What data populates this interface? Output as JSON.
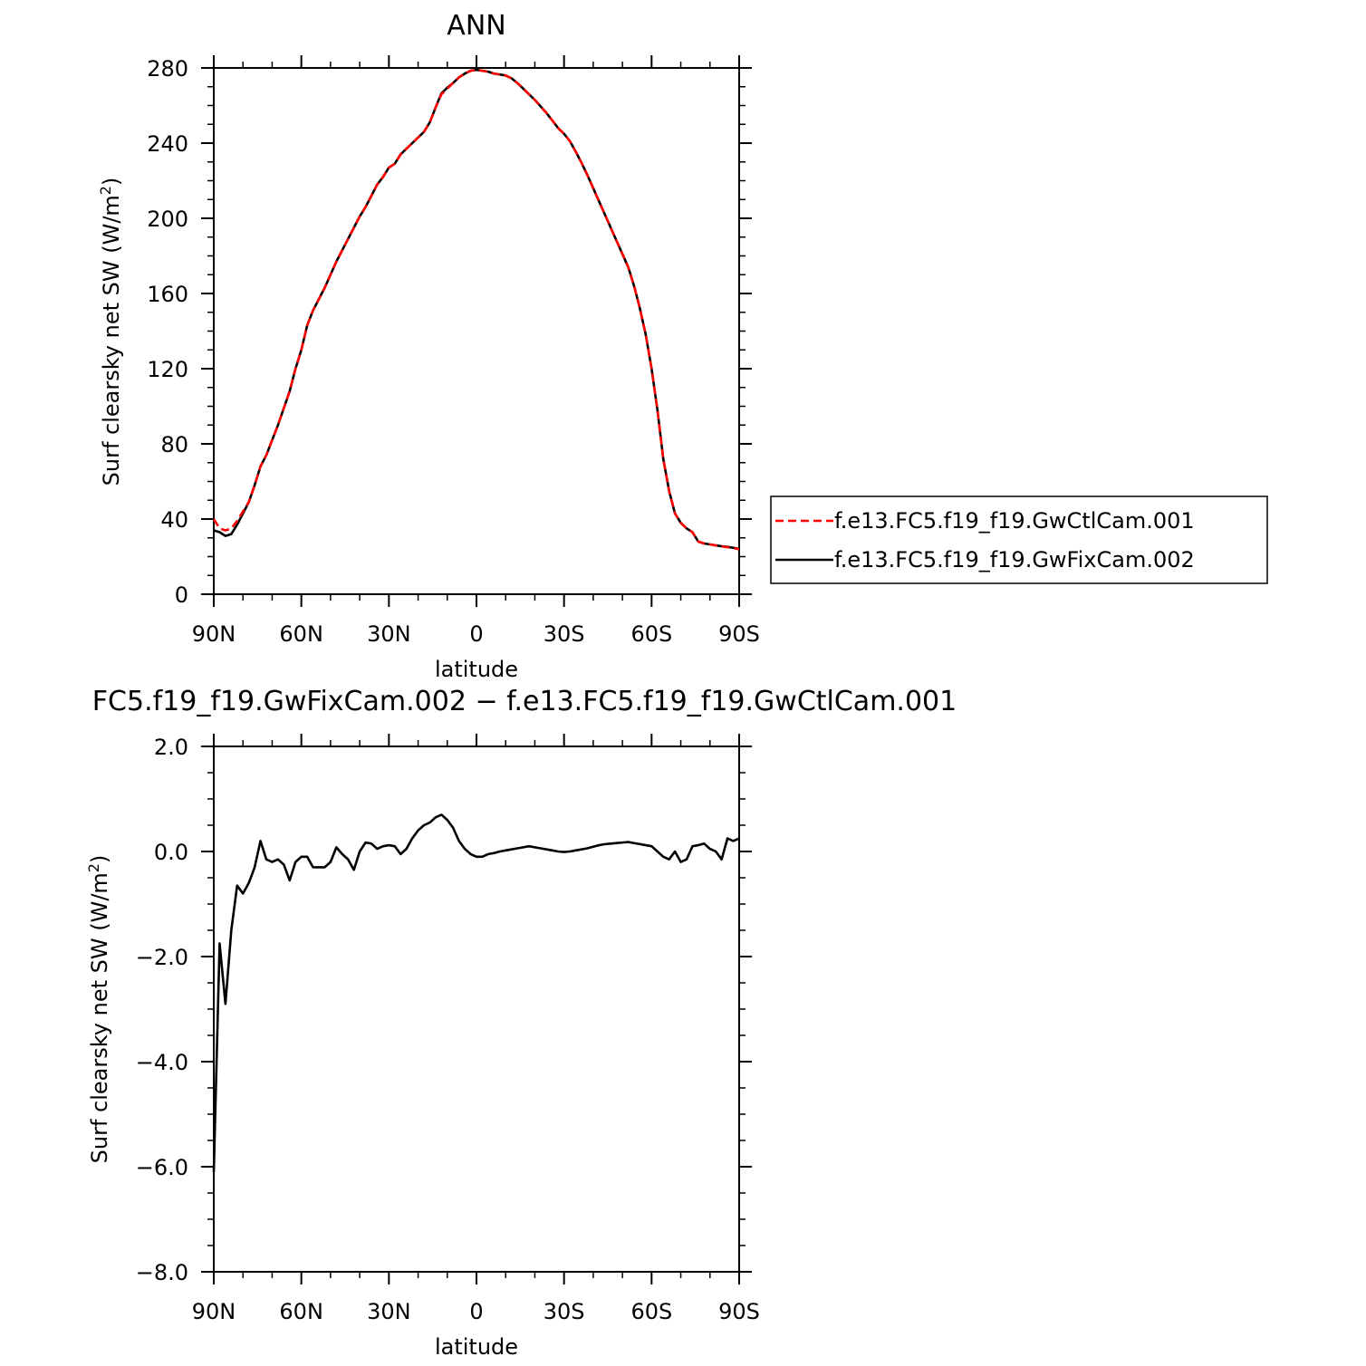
{
  "chart_data": [
    {
      "type": "line",
      "title": "ANN",
      "xlabel": "latitude",
      "ylabel": "Surf clearsky net SW (W/m",
      "ylabel_sup": "2",
      "ylabel_end": ")",
      "xlim": [
        90,
        -90
      ],
      "ylim": [
        0,
        280
      ],
      "xticks": [
        {
          "value": 90,
          "label": "90N"
        },
        {
          "value": 60,
          "label": "60N"
        },
        {
          "value": 30,
          "label": "30N"
        },
        {
          "value": 0,
          "label": "0"
        },
        {
          "value": -30,
          "label": "30S"
        },
        {
          "value": -60,
          "label": "60S"
        },
        {
          "value": -90,
          "label": "90S"
        }
      ],
      "yticks": [
        {
          "value": 0,
          "label": "0"
        },
        {
          "value": 40,
          "label": "40"
        },
        {
          "value": 80,
          "label": "80"
        },
        {
          "value": 120,
          "label": "120"
        },
        {
          "value": 160,
          "label": "160"
        },
        {
          "value": 200,
          "label": "200"
        },
        {
          "value": 240,
          "label": "240"
        },
        {
          "value": 280,
          "label": "280"
        }
      ],
      "legend_position": "right",
      "series": [
        {
          "name": "f.e13.FC5.f19_f19.GwCtlCam.001",
          "color": "#ff0000",
          "dash": "dashed",
          "x": [
            90,
            88,
            86,
            84,
            82,
            80,
            78,
            76,
            74,
            72,
            70,
            68,
            66,
            64,
            62,
            60,
            58,
            56,
            54,
            52,
            50,
            48,
            46,
            44,
            42,
            40,
            38,
            36,
            34,
            32,
            30,
            28,
            26,
            24,
            22,
            20,
            18,
            16,
            14,
            12,
            10,
            8,
            6,
            4,
            2,
            0,
            -2,
            -4,
            -6,
            -8,
            -10,
            -12,
            -14,
            -16,
            -18,
            -20,
            -22,
            -24,
            -26,
            -28,
            -30,
            -32,
            -34,
            -36,
            -38,
            -40,
            -42,
            -44,
            -46,
            -48,
            -50,
            -52,
            -54,
            -56,
            -58,
            -60,
            -62,
            -64,
            -66,
            -68,
            -70,
            -72,
            -74,
            -76,
            -78,
            -80,
            -82,
            -84,
            -86,
            -88,
            -90
          ],
          "y": [
            40,
            35,
            34,
            35,
            39,
            44,
            49,
            58,
            68,
            74,
            82,
            90,
            99,
            108,
            120,
            130,
            143,
            151,
            157,
            163,
            170,
            177,
            183,
            189,
            195,
            201,
            206,
            212,
            218,
            222,
            227,
            229,
            234,
            237,
            240,
            243,
            246,
            251,
            259,
            266,
            269,
            272,
            275,
            277,
            278.5,
            279,
            278.5,
            278,
            277,
            276.5,
            276,
            274.5,
            272,
            269,
            266,
            263,
            259.5,
            256,
            252,
            248,
            245,
            241,
            235.5,
            229.5,
            223,
            216,
            209,
            202,
            195,
            188,
            181,
            174,
            164,
            152,
            138,
            120,
            98,
            72,
            55,
            43,
            38,
            35,
            33,
            28,
            27,
            26.5,
            26,
            25.5,
            25,
            24.5,
            24
          ]
        },
        {
          "name": "f.e13.FC5.f19_f19.GwFixCam.002",
          "color": "#000000",
          "dash": "solid",
          "x": [
            90,
            88,
            86,
            84,
            82,
            80,
            78,
            76,
            74,
            72,
            70,
            68,
            66,
            64,
            62,
            60,
            58,
            56,
            54,
            52,
            50,
            48,
            46,
            44,
            42,
            40,
            38,
            36,
            34,
            32,
            30,
            28,
            26,
            24,
            22,
            20,
            18,
            16,
            14,
            12,
            10,
            8,
            6,
            4,
            2,
            0,
            -2,
            -4,
            -6,
            -8,
            -10,
            -12,
            -14,
            -16,
            -18,
            -20,
            -22,
            -24,
            -26,
            -28,
            -30,
            -32,
            -34,
            -36,
            -38,
            -40,
            -42,
            -44,
            -46,
            -48,
            -50,
            -52,
            -54,
            -56,
            -58,
            -60,
            -62,
            -64,
            -66,
            -68,
            -70,
            -72,
            -74,
            -76,
            -78,
            -80,
            -82,
            -84,
            -86,
            -88,
            -90
          ],
          "y": [
            34,
            33,
            31,
            32,
            37,
            43,
            49,
            58,
            68,
            74,
            82,
            90,
            99,
            108,
            120,
            130,
            143,
            151,
            157,
            163,
            170,
            177,
            183,
            189,
            195,
            201,
            206,
            212,
            218,
            222,
            227,
            229,
            234,
            237,
            240,
            243,
            246,
            251,
            259,
            266.5,
            269.5,
            272,
            275,
            277,
            278.5,
            279,
            278.5,
            278,
            277,
            276.5,
            276,
            274.5,
            272,
            269,
            266,
            263,
            259.5,
            256,
            252,
            248,
            245,
            241,
            235.5,
            229.5,
            223,
            216,
            209,
            202,
            195,
            188,
            181,
            174,
            164,
            152,
            138,
            120,
            98,
            72,
            55,
            43,
            38,
            35,
            33,
            28,
            27,
            26.5,
            26,
            25.5,
            25.2,
            24.7,
            24.2
          ]
        }
      ]
    },
    {
      "type": "line",
      "title": "FC5.f19_f19.GwFixCam.002 − f.e13.FC5.f19_f19.GwCtlCam.001",
      "xlabel": "latitude",
      "ylabel": "Surf clearsky net SW (W/m",
      "ylabel_sup": "2",
      "ylabel_end": ")",
      "xlim": [
        90,
        -90
      ],
      "ylim": [
        -8,
        2
      ],
      "xticks": [
        {
          "value": 90,
          "label": "90N"
        },
        {
          "value": 60,
          "label": "60N"
        },
        {
          "value": 30,
          "label": "30N"
        },
        {
          "value": 0,
          "label": "0"
        },
        {
          "value": -30,
          "label": "30S"
        },
        {
          "value": -60,
          "label": "60S"
        },
        {
          "value": -90,
          "label": "90S"
        }
      ],
      "yticks": [
        {
          "value": -8,
          "label": "−8.0"
        },
        {
          "value": -6,
          "label": "−6.0"
        },
        {
          "value": -4,
          "label": "−4.0"
        },
        {
          "value": -2,
          "label": "−2.0"
        },
        {
          "value": 0,
          "label": "0.0"
        },
        {
          "value": 2,
          "label": "2.0"
        }
      ],
      "series": [
        {
          "color": "#000000",
          "x": [
            90,
            88,
            86,
            84,
            82,
            80,
            78,
            76,
            74,
            72,
            70,
            68,
            66,
            64,
            62,
            60,
            58,
            56,
            54,
            52,
            50,
            48,
            46,
            44,
            42,
            40,
            38,
            36,
            34,
            32,
            30,
            28,
            26,
            24,
            22,
            20,
            18,
            16,
            14,
            12,
            10,
            8,
            6,
            4,
            2,
            0,
            -2,
            -4,
            -6,
            -8,
            -10,
            -12,
            -14,
            -16,
            -18,
            -20,
            -22,
            -24,
            -26,
            -28,
            -30,
            -32,
            -34,
            -36,
            -38,
            -40,
            -42,
            -44,
            -46,
            -48,
            -50,
            -52,
            -54,
            -56,
            -58,
            -60,
            -62,
            -64,
            -66,
            -68,
            -70,
            -72,
            -74,
            -76,
            -78,
            -80,
            -82,
            -84,
            -86,
            -88,
            -90
          ],
          "y": [
            -6.1,
            -1.75,
            -2.9,
            -1.5,
            -0.65,
            -0.8,
            -0.6,
            -0.3,
            0.2,
            -0.15,
            -0.2,
            -0.15,
            -0.25,
            -0.55,
            -0.2,
            -0.1,
            -0.1,
            -0.3,
            -0.3,
            -0.3,
            -0.2,
            0.08,
            -0.05,
            -0.15,
            -0.35,
            0.0,
            0.17,
            0.15,
            0.05,
            0.1,
            0.12,
            0.1,
            -0.05,
            0.05,
            0.25,
            0.4,
            0.5,
            0.55,
            0.65,
            0.7,
            0.6,
            0.45,
            0.2,
            0.05,
            -0.05,
            -0.1,
            -0.1,
            -0.05,
            -0.03,
            0.0,
            0.02,
            0.04,
            0.06,
            0.08,
            0.1,
            0.08,
            0.06,
            0.04,
            0.02,
            0.0,
            -0.01,
            0.0,
            0.02,
            0.04,
            0.06,
            0.09,
            0.12,
            0.14,
            0.15,
            0.16,
            0.17,
            0.18,
            0.16,
            0.14,
            0.12,
            0.1,
            0.0,
            -0.1,
            -0.15,
            0.0,
            -0.2,
            -0.15,
            0.1,
            0.12,
            0.15,
            0.05,
            0.0,
            -0.15,
            0.25,
            0.2,
            0.25
          ]
        }
      ]
    }
  ]
}
